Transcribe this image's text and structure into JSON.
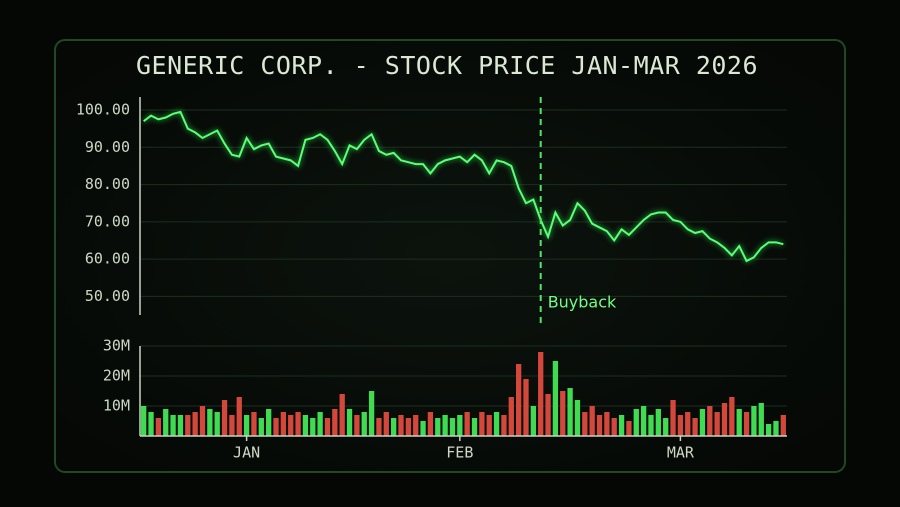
{
  "chart_data": [
    {
      "type": "line",
      "title": "GENERIC CORP. - STOCK PRICE JAN-MAR 2026",
      "values": [
        97,
        98.5,
        97.5,
        98,
        99,
        99.5,
        95,
        94,
        92.5,
        93.5,
        94.5,
        91,
        88,
        87.5,
        92.5,
        89.5,
        90.5,
        91,
        87.5,
        87,
        86.5,
        85,
        92,
        92.5,
        93.5,
        92,
        89,
        85.5,
        90.5,
        89.5,
        92,
        93.5,
        89,
        88,
        88.5,
        86.5,
        86,
        85.5,
        85.5,
        83,
        85.5,
        86.5,
        87,
        87.5,
        86,
        88,
        86.5,
        83,
        86.5,
        86,
        85,
        79,
        75,
        76,
        70.5,
        66,
        72.5,
        69,
        70.5,
        75,
        73,
        69.5,
        68.5,
        67.5,
        65,
        68,
        66.5,
        68.5,
        70.5,
        72,
        72.5,
        72.5,
        70.5,
        70,
        68,
        67,
        67.5,
        65.5,
        64.5,
        63,
        61,
        63.5,
        59.5,
        60.5,
        63,
        64.5,
        64.5,
        64
      ],
      "color": "#5cff78",
      "ylim": [
        45,
        103.5
      ],
      "yticks": [
        {
          "value": 50,
          "label": "50.00"
        },
        {
          "value": 60,
          "label": "60.00"
        },
        {
          "value": 70,
          "label": "70.00"
        },
        {
          "value": 80,
          "label": "80.00"
        },
        {
          "value": 90,
          "label": "90.00"
        },
        {
          "value": 100,
          "label": "100.00"
        }
      ],
      "grid": true,
      "annotations": [
        {
          "text": "Buyback",
          "index": 54
        }
      ]
    },
    {
      "type": "bar",
      "categories": [
        null,
        null,
        null,
        null,
        null,
        null,
        null,
        null,
        null,
        null,
        null,
        null,
        null,
        null,
        "JAN",
        null,
        null,
        null,
        null,
        null,
        null,
        null,
        null,
        null,
        null,
        null,
        null,
        null,
        null,
        null,
        null,
        null,
        null,
        null,
        null,
        null,
        null,
        null,
        null,
        null,
        null,
        null,
        null,
        "FEB",
        null,
        null,
        null,
        null,
        null,
        null,
        null,
        null,
        null,
        null,
        null,
        null,
        null,
        null,
        null,
        null,
        null,
        null,
        null,
        null,
        null,
        null,
        null,
        null,
        null,
        null,
        null,
        null,
        null,
        "MAR",
        null,
        null,
        null,
        null,
        null,
        null,
        null,
        null,
        null,
        null,
        null,
        null,
        null,
        null
      ],
      "values": [
        10000000,
        8000000,
        6000000,
        9000000,
        7000000,
        7000000,
        7000000,
        8000000,
        10000000,
        9000000,
        8000000,
        12000000,
        7000000,
        13000000,
        7000000,
        8000000,
        6000000,
        9000000,
        6000000,
        8000000,
        7000000,
        8000000,
        7000000,
        6000000,
        8000000,
        6000000,
        9000000,
        14000000,
        9000000,
        7000000,
        8000000,
        15000000,
        6000000,
        8000000,
        6000000,
        7000000,
        6000000,
        7000000,
        5000000,
        8000000,
        6000000,
        7000000,
        6000000,
        7000000,
        8000000,
        6000000,
        8000000,
        7000000,
        8000000,
        7000000,
        13000000,
        24000000,
        19000000,
        10000000,
        28000000,
        14000000,
        25000000,
        15000000,
        16000000,
        12000000,
        8000000,
        10000000,
        7000000,
        8000000,
        6000000,
        7000000,
        5000000,
        9000000,
        10000000,
        7000000,
        9000000,
        6000000,
        12000000,
        7000000,
        8000000,
        6000000,
        9000000,
        10000000,
        8000000,
        11000000,
        13000000,
        9000000,
        8000000,
        10000000,
        11000000,
        4000000,
        5000000,
        7000000
      ],
      "up_color": "#3fdc52",
      "down_color": "#d4473b",
      "ylim": [
        0,
        30000000
      ],
      "yticks": [
        {
          "value": 10000000,
          "label": "10M"
        },
        {
          "value": 20000000,
          "label": "20M"
        },
        {
          "value": 30000000,
          "label": "30M"
        }
      ],
      "grid": true
    }
  ]
}
